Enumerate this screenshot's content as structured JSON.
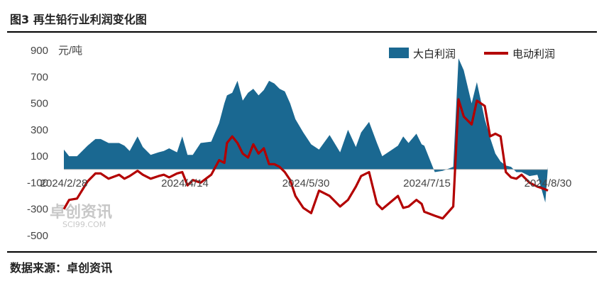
{
  "figure": {
    "title": "图3 再生铅行业利润变化图",
    "source": "数据来源：卓创资讯",
    "watermark": {
      "main": "卓创资讯",
      "sub": "SCI99.COM"
    }
  },
  "chart_data": {
    "type": "area",
    "title": "",
    "xlabel": "",
    "ylabel": "元/吨",
    "ylim": [
      -500,
      900
    ],
    "yticks": [
      900,
      700,
      500,
      300,
      100,
      -100,
      -300,
      -500
    ],
    "xticks": [
      "2024/2/28",
      "2024/4/14",
      "2024/5/30",
      "2024/7/15",
      "2024/8/30"
    ],
    "x_range": [
      "2024/2/28",
      "2024/8/30"
    ],
    "grid": false,
    "legend": "top-right",
    "series": [
      {
        "name": "大白利润",
        "type": "area",
        "color": "#1a6891",
        "x": [
          "2024/2/28",
          "2024/3/1",
          "2024/3/4",
          "2024/3/8",
          "2024/3/11",
          "2024/3/13",
          "2024/3/16",
          "2024/3/20",
          "2024/3/22",
          "2024/3/24",
          "2024/3/27",
          "2024/3/29",
          "2024/4/1",
          "2024/4/4",
          "2024/4/6",
          "2024/4/8",
          "2024/4/11",
          "2024/4/13",
          "2024/4/15",
          "2024/4/17",
          "2024/4/20",
          "2024/4/24",
          "2024/4/27",
          "2024/4/29",
          "2024/4/30",
          "2024/5/2",
          "2024/5/4",
          "2024/5/6",
          "2024/5/8",
          "2024/5/10",
          "2024/5/12",
          "2024/5/14",
          "2024/5/16",
          "2024/5/18",
          "2024/5/20",
          "2024/5/22",
          "2024/5/24",
          "2024/5/26",
          "2024/5/29",
          "2024/6/1",
          "2024/6/4",
          "2024/6/8",
          "2024/6/12",
          "2024/6/15",
          "2024/6/18",
          "2024/6/20",
          "2024/6/23",
          "2024/6/26",
          "2024/6/28",
          "2024/7/1",
          "2024/7/4",
          "2024/7/6",
          "2024/7/8",
          "2024/7/11",
          "2024/7/13",
          "2024/7/14",
          "2024/7/18",
          "2024/7/21",
          "2024/7/25",
          "2024/7/27",
          "2024/7/29",
          "2024/8/1",
          "2024/8/3",
          "2024/8/6",
          "2024/8/8",
          "2024/8/10",
          "2024/8/12",
          "2024/8/14",
          "2024/8/16",
          "2024/8/18",
          "2024/8/20",
          "2024/8/23",
          "2024/8/26",
          "2024/8/29",
          "2024/8/30"
        ],
        "values": [
          150,
          100,
          100,
          180,
          230,
          230,
          200,
          200,
          180,
          140,
          250,
          170,
          110,
          130,
          140,
          160,
          130,
          250,
          110,
          110,
          200,
          210,
          350,
          500,
          560,
          580,
          670,
          520,
          580,
          610,
          560,
          600,
          670,
          650,
          610,
          590,
          500,
          380,
          280,
          190,
          150,
          260,
          130,
          300,
          170,
          280,
          360,
          200,
          100,
          140,
          180,
          250,
          200,
          270,
          190,
          180,
          -20,
          -10,
          20,
          840,
          750,
          500,
          660,
          380,
          240,
          120,
          60,
          30,
          20,
          -20,
          -20,
          -50,
          -40,
          -250,
          20
        ]
      },
      {
        "name": "电动利润",
        "type": "line",
        "color": "#b30000",
        "x": [
          "2024/2/28",
          "2024/3/1",
          "2024/3/4",
          "2024/3/8",
          "2024/3/11",
          "2024/3/13",
          "2024/3/16",
          "2024/3/20",
          "2024/3/22",
          "2024/3/24",
          "2024/3/27",
          "2024/3/29",
          "2024/4/1",
          "2024/4/4",
          "2024/4/6",
          "2024/4/8",
          "2024/4/11",
          "2024/4/13",
          "2024/4/15",
          "2024/4/17",
          "2024/4/20",
          "2024/4/24",
          "2024/4/27",
          "2024/4/29",
          "2024/4/30",
          "2024/5/2",
          "2024/5/4",
          "2024/5/6",
          "2024/5/8",
          "2024/5/10",
          "2024/5/12",
          "2024/5/14",
          "2024/5/16",
          "2024/5/18",
          "2024/5/20",
          "2024/5/22",
          "2024/5/24",
          "2024/5/26",
          "2024/5/29",
          "2024/6/1",
          "2024/6/4",
          "2024/6/8",
          "2024/6/12",
          "2024/6/15",
          "2024/6/18",
          "2024/6/20",
          "2024/6/23",
          "2024/6/26",
          "2024/6/28",
          "2024/7/1",
          "2024/7/4",
          "2024/7/6",
          "2024/7/8",
          "2024/7/11",
          "2024/7/13",
          "2024/7/14",
          "2024/7/18",
          "2024/7/21",
          "2024/7/25",
          "2024/7/27",
          "2024/7/29",
          "2024/8/1",
          "2024/8/3",
          "2024/8/6",
          "2024/8/8",
          "2024/8/10",
          "2024/8/12",
          "2024/8/14",
          "2024/8/16",
          "2024/8/18",
          "2024/8/20",
          "2024/8/23",
          "2024/8/26",
          "2024/8/29",
          "2024/8/30"
        ],
        "values": [
          -300,
          -230,
          -220,
          -90,
          -30,
          -30,
          -70,
          -40,
          -70,
          -50,
          -10,
          -40,
          -70,
          -50,
          -40,
          -60,
          -30,
          -20,
          -120,
          -80,
          -100,
          -40,
          70,
          50,
          200,
          250,
          200,
          120,
          90,
          190,
          120,
          160,
          40,
          40,
          20,
          -20,
          -80,
          -200,
          -290,
          -330,
          -160,
          -200,
          -280,
          -230,
          -130,
          -50,
          -20,
          -260,
          -300,
          -250,
          -200,
          -290,
          -280,
          -230,
          -260,
          -320,
          -350,
          -370,
          -280,
          530,
          400,
          340,
          520,
          480,
          250,
          270,
          250,
          -20,
          -60,
          -70,
          -40,
          -100,
          -130,
          -150,
          -160
        ]
      }
    ]
  }
}
